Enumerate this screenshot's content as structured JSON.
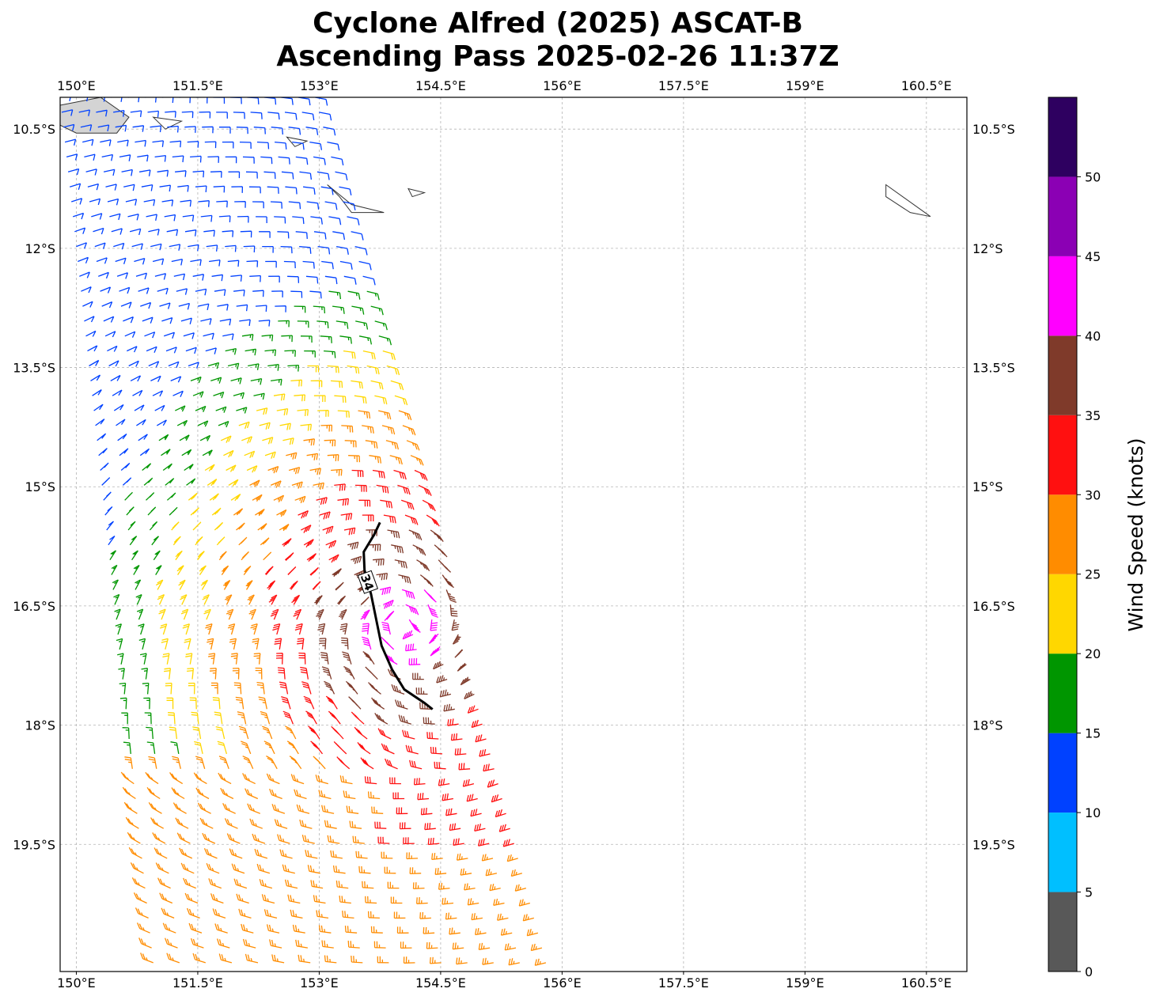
{
  "chart_data": {
    "type": "wind_barb_map",
    "title_line1": "Cyclone Alfred (2025) ASCAT-B",
    "title_line2": "Ascending Pass 2025-02-26 11:37Z",
    "lon_range": [
      149.8,
      161.0
    ],
    "lat_range": [
      -21.1,
      -10.1
    ],
    "lon_ticks": [
      "150°E",
      "151.5°E",
      "153°E",
      "154.5°E",
      "156°E",
      "157.5°E",
      "159°E",
      "160.5°E"
    ],
    "lon_tick_values": [
      150,
      151.5,
      153,
      154.5,
      156,
      157.5,
      159,
      160.5
    ],
    "lat_ticks": [
      "10.5°S",
      "12°S",
      "13.5°S",
      "15°S",
      "16.5°S",
      "18°S",
      "19.5°S"
    ],
    "lat_tick_values": [
      -10.5,
      -12,
      -13.5,
      -15,
      -16.5,
      -18,
      -19.5
    ],
    "grid": true,
    "contour_label": "34",
    "contour_34kt": [
      [
        153.75,
        -15.45
      ],
      [
        153.68,
        -15.6
      ],
      [
        153.55,
        -15.82
      ],
      [
        153.56,
        -16.05
      ],
      [
        153.64,
        -16.35
      ],
      [
        153.72,
        -16.75
      ],
      [
        153.77,
        -17.0
      ],
      [
        153.9,
        -17.3
      ],
      [
        154.05,
        -17.55
      ],
      [
        154.3,
        -17.72
      ],
      [
        154.4,
        -17.8
      ]
    ],
    "swath": {
      "corners": [
        [
          149.8,
          -10.1
        ],
        [
          152.95,
          -10.1
        ],
        [
          155.8,
          -20.99
        ],
        [
          150.95,
          -20.99
        ]
      ]
    },
    "land": [
      [
        [
          149.8,
          -10.2
        ],
        [
          150.3,
          -10.1
        ],
        [
          150.65,
          -10.35
        ],
        [
          150.5,
          -10.55
        ],
        [
          150.0,
          -10.55
        ],
        [
          149.8,
          -10.45
        ]
      ],
      [
        [
          150.95,
          -10.35
        ],
        [
          151.3,
          -10.4
        ],
        [
          151.1,
          -10.5
        ]
      ],
      [
        [
          152.6,
          -10.6
        ],
        [
          152.85,
          -10.65
        ],
        [
          152.7,
          -10.72
        ]
      ],
      [
        [
          153.1,
          -11.2
        ],
        [
          153.4,
          -11.45
        ],
        [
          153.8,
          -11.55
        ],
        [
          153.4,
          -11.55
        ],
        [
          153.25,
          -11.35
        ]
      ],
      [
        [
          154.1,
          -11.25
        ],
        [
          154.3,
          -11.3
        ],
        [
          154.15,
          -11.35
        ]
      ],
      [
        [
          160.0,
          -11.2
        ],
        [
          160.55,
          -11.6
        ],
        [
          160.3,
          -11.55
        ],
        [
          160.0,
          -11.35
        ]
      ]
    ],
    "colorbar": {
      "label": "Wind Speed (knots)",
      "bounds": [
        0,
        5,
        10,
        15,
        20,
        25,
        30,
        35,
        40,
        45,
        50,
        55
      ],
      "tick_labels": [
        "0",
        "5",
        "10",
        "15",
        "20",
        "25",
        "30",
        "35",
        "40",
        "45",
        "50"
      ],
      "colors": [
        "#585858",
        "#00bfff",
        "#0041ff",
        "#009600",
        "#ffd700",
        "#ff8c00",
        "#ff1010",
        "#7f3a2a",
        "#ff00ff",
        "#8b00b4",
        "#2e0060"
      ]
    }
  }
}
